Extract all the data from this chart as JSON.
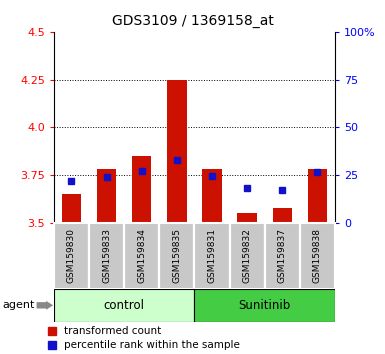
{
  "title": "GDS3109 / 1369158_at",
  "samples": [
    "GSM159830",
    "GSM159833",
    "GSM159834",
    "GSM159835",
    "GSM159831",
    "GSM159832",
    "GSM159837",
    "GSM159838"
  ],
  "red_values": [
    3.65,
    3.78,
    3.85,
    4.25,
    3.78,
    3.55,
    3.58,
    3.78
  ],
  "blue_values": [
    3.72,
    3.74,
    3.77,
    3.83,
    3.745,
    3.685,
    3.675,
    3.765
  ],
  "baseline": 3.5,
  "ylim_left": [
    3.5,
    4.5
  ],
  "yticks_left": [
    3.5,
    3.75,
    4.0,
    4.25,
    4.5
  ],
  "ylim_right": [
    0,
    100
  ],
  "yticks_right": [
    0,
    25,
    50,
    75,
    100
  ],
  "ytick_labels_right": [
    "0",
    "25",
    "50",
    "75",
    "100%"
  ],
  "groups": [
    {
      "label": "control",
      "indices": [
        0,
        1,
        2,
        3
      ],
      "color": "#ccffcc"
    },
    {
      "label": "Sunitinib",
      "indices": [
        4,
        5,
        6,
        7
      ],
      "color": "#44cc44"
    }
  ],
  "group_label": "agent",
  "bar_color": "#cc1100",
  "dot_color": "#1111cc",
  "bar_width": 0.55,
  "tick_bg_color": "#c8c8c8",
  "legend_items": [
    "transformed count",
    "percentile rank within the sample"
  ],
  "legend_colors": [
    "#cc1100",
    "#1111cc"
  ]
}
